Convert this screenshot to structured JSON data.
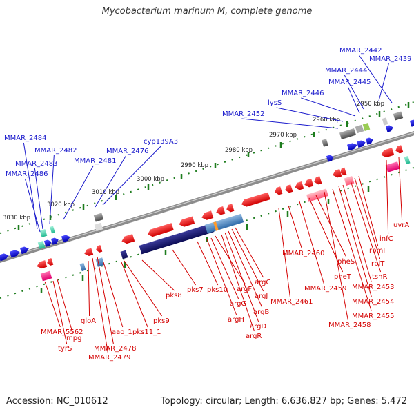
{
  "title": "Mycobacterium marinum M, complete genome",
  "footer": {
    "accession": "Accession: NC_010612",
    "topology": "Topology: circular; Length: 6,636,827 bp; Genes: 5,472"
  },
  "colors": {
    "forward_label": "#1a1acc",
    "reverse_label": "#d40000",
    "tick": "#1e7d1e",
    "backbone": "#8c8c8c"
  },
  "scale_labels": [
    "3030 kbp",
    "3020 kbp",
    "3010 kbp",
    "3000 kbp",
    "2990 kbp",
    "2980 kbp",
    "2970 kbp",
    "2960 kbp",
    "2950 kbp"
  ],
  "forward_labels": [
    "MMAR_2442",
    "MMAR_2439",
    "MMAR_2444",
    "MMAR_2445",
    "MMAR_2446",
    "lysS",
    "MMAR_2452",
    "cyp139A3",
    "MMAR_2476",
    "MMAR_2481",
    "MMAR_2484",
    "MMAR_2482",
    "MMAR_2483",
    "MMAR_2486"
  ],
  "reverse_labels": [
    "uvrA",
    "infC",
    "rpmI",
    "rplT",
    "tsnR",
    "MMAR_2453",
    "MMAR_2454",
    "MMAR_2455",
    "MMAR_2458",
    "pheS",
    "pheT",
    "MMAR_2459",
    "MMAR_2460",
    "MMAR_2461",
    "argC",
    "argJ",
    "argB",
    "argD",
    "argR",
    "argF",
    "argG",
    "argH",
    "pks10",
    "pks7",
    "pks8",
    "pks9",
    "pks11_1",
    "aao_1",
    "gloA",
    "MMAR_2478",
    "MMAR_2479",
    "mpg",
    "tyrS",
    "MMAR_5562"
  ]
}
